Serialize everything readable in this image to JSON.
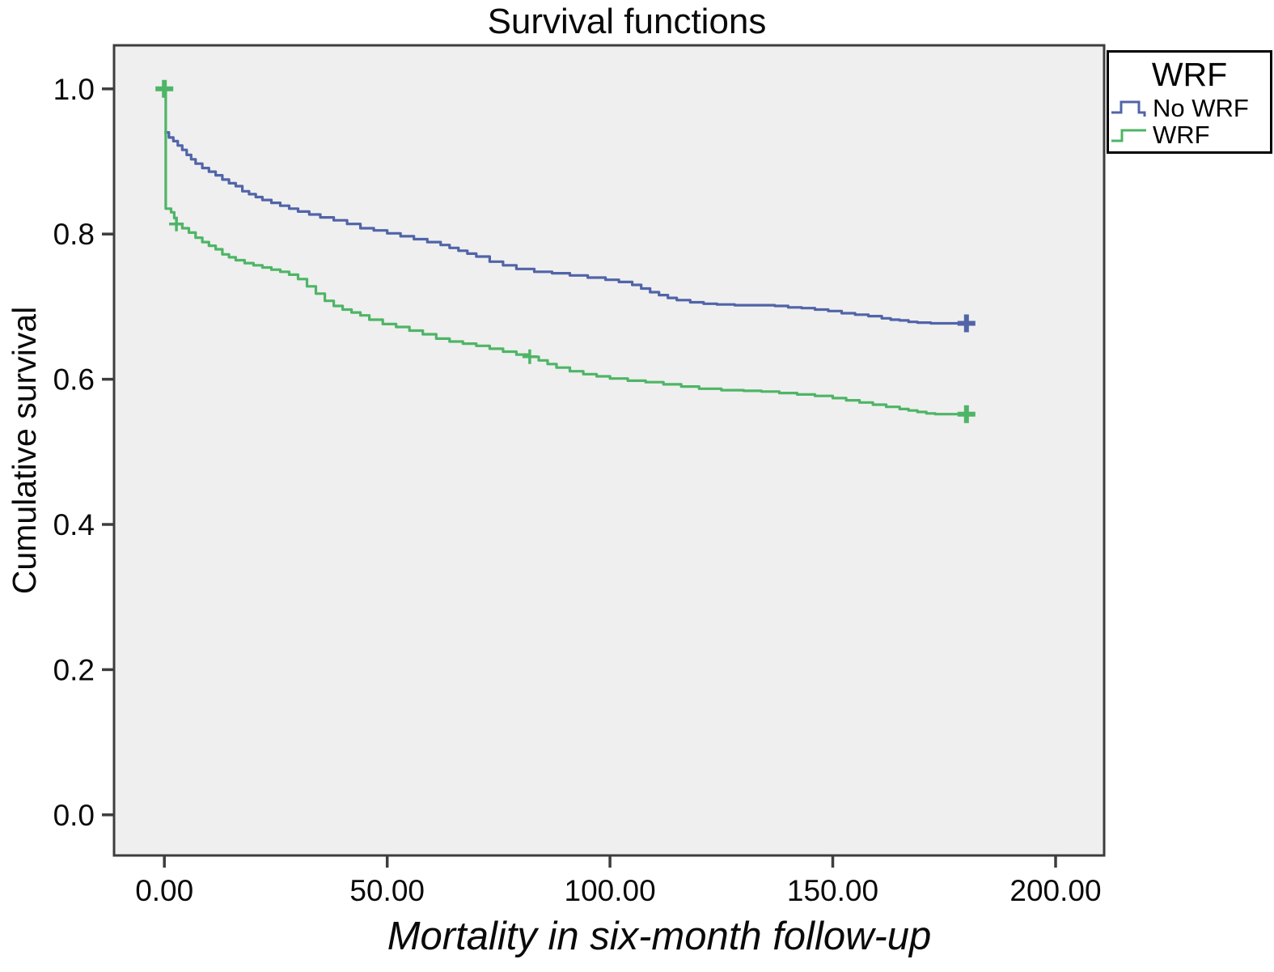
{
  "title": "Survival functions",
  "axis": {
    "ylabel": "Cumulative survival",
    "xlabel": "Mortality in six-month follow-up"
  },
  "legend": {
    "title": "WRF",
    "entries": [
      {
        "label": "No WRF",
        "color": "#5164a8"
      },
      {
        "label": "WRF",
        "color": "#4eb566"
      }
    ]
  },
  "chart_data": {
    "type": "line",
    "subtype": "kaplan-meier-step-survival",
    "title": "Survival functions",
    "xlabel": "Mortality in six-month follow-up",
    "ylabel": "Cumulative survival",
    "xlim": [
      -11.3,
      210.9
    ],
    "ylim": [
      -0.056,
      1.06
    ],
    "grid": false,
    "legend_position": "top-right-outside",
    "plot_bg": "#efefef",
    "axis_color": "#3d3d3d",
    "xticks": [
      {
        "value": 0,
        "label": "0.00"
      },
      {
        "value": 50,
        "label": "50.00"
      },
      {
        "value": 100,
        "label": "100.00"
      },
      {
        "value": 150,
        "label": "150.00"
      },
      {
        "value": 200,
        "label": "200.00"
      }
    ],
    "yticks": [
      {
        "value": 1.0,
        "label": "1.0"
      },
      {
        "value": 0.8,
        "label": "0.8"
      },
      {
        "value": 0.6,
        "label": "0.6"
      },
      {
        "value": 0.4,
        "label": "0.4"
      },
      {
        "value": 0.2,
        "label": "0.2"
      },
      {
        "value": 0.0,
        "label": "0.0"
      }
    ],
    "series": [
      {
        "name": "No WRF",
        "color": "#5164a8",
        "points": [
          [
            0,
            0.94
          ],
          [
            1,
            0.933
          ],
          [
            2,
            0.928
          ],
          [
            3,
            0.922
          ],
          [
            4,
            0.916
          ],
          [
            5,
            0.909
          ],
          [
            6,
            0.903
          ],
          [
            7,
            0.897
          ],
          [
            8.5,
            0.891
          ],
          [
            10,
            0.886
          ],
          [
            11.5,
            0.881
          ],
          [
            13,
            0.875
          ],
          [
            14.5,
            0.87
          ],
          [
            16,
            0.866
          ],
          [
            17.5,
            0.859
          ],
          [
            19,
            0.855
          ],
          [
            20.5,
            0.851
          ],
          [
            22,
            0.847
          ],
          [
            24,
            0.843
          ],
          [
            26,
            0.839
          ],
          [
            28,
            0.835
          ],
          [
            30,
            0.831
          ],
          [
            32.5,
            0.827
          ],
          [
            35,
            0.823
          ],
          [
            38,
            0.819
          ],
          [
            41,
            0.814
          ],
          [
            44,
            0.808
          ],
          [
            47,
            0.805
          ],
          [
            50,
            0.801
          ],
          [
            53,
            0.797
          ],
          [
            56,
            0.793
          ],
          [
            59,
            0.789
          ],
          [
            62,
            0.785
          ],
          [
            64,
            0.781
          ],
          [
            66,
            0.777
          ],
          [
            68,
            0.773
          ],
          [
            70,
            0.769
          ],
          [
            73,
            0.762
          ],
          [
            76,
            0.757
          ],
          [
            79,
            0.752
          ],
          [
            83,
            0.748
          ],
          [
            87,
            0.746
          ],
          [
            91,
            0.743
          ],
          [
            95,
            0.74
          ],
          [
            99,
            0.737
          ],
          [
            102,
            0.734
          ],
          [
            105,
            0.73
          ],
          [
            107,
            0.725
          ],
          [
            109,
            0.72
          ],
          [
            111,
            0.716
          ],
          [
            113,
            0.712
          ],
          [
            115,
            0.709
          ],
          [
            118,
            0.706
          ],
          [
            121,
            0.704
          ],
          [
            124,
            0.703
          ],
          [
            128,
            0.702
          ],
          [
            133,
            0.702
          ],
          [
            137,
            0.701
          ],
          [
            140,
            0.699
          ],
          [
            143,
            0.698
          ],
          [
            146,
            0.696
          ],
          [
            149,
            0.694
          ],
          [
            152,
            0.691
          ],
          [
            155,
            0.689
          ],
          [
            158,
            0.687
          ],
          [
            161,
            0.684
          ],
          [
            163,
            0.682
          ],
          [
            165,
            0.681
          ],
          [
            167,
            0.679
          ],
          [
            169,
            0.678
          ],
          [
            172,
            0.677
          ],
          [
            180,
            0.677
          ]
        ],
        "censors": [
          {
            "x": 180,
            "y": 0.677,
            "big": true
          }
        ]
      },
      {
        "name": "WRF",
        "color": "#4eb566",
        "points": [
          [
            0,
            1.0
          ],
          [
            0.3,
            0.835
          ],
          [
            1.5,
            0.83
          ],
          [
            2.2,
            0.822
          ],
          [
            2.7,
            0.814
          ],
          [
            4,
            0.808
          ],
          [
            5.5,
            0.802
          ],
          [
            7,
            0.795
          ],
          [
            8.5,
            0.789
          ],
          [
            10,
            0.784
          ],
          [
            11.5,
            0.779
          ],
          [
            13,
            0.772
          ],
          [
            14.5,
            0.768
          ],
          [
            16,
            0.764
          ],
          [
            18,
            0.76
          ],
          [
            20,
            0.757
          ],
          [
            22,
            0.754
          ],
          [
            24,
            0.751
          ],
          [
            26,
            0.748
          ],
          [
            28,
            0.744
          ],
          [
            30,
            0.738
          ],
          [
            32,
            0.728
          ],
          [
            34,
            0.718
          ],
          [
            36,
            0.708
          ],
          [
            38,
            0.701
          ],
          [
            40,
            0.696
          ],
          [
            42,
            0.692
          ],
          [
            44,
            0.688
          ],
          [
            46,
            0.682
          ],
          [
            49,
            0.676
          ],
          [
            52,
            0.672
          ],
          [
            55,
            0.667
          ],
          [
            58,
            0.662
          ],
          [
            61,
            0.656
          ],
          [
            64,
            0.652
          ],
          [
            67,
            0.649
          ],
          [
            70,
            0.646
          ],
          [
            73,
            0.642
          ],
          [
            76,
            0.638
          ],
          [
            79,
            0.634
          ],
          [
            82,
            0.631
          ],
          [
            84,
            0.626
          ],
          [
            86,
            0.621
          ],
          [
            88,
            0.616
          ],
          [
            91,
            0.611
          ],
          [
            94,
            0.607
          ],
          [
            97,
            0.604
          ],
          [
            100,
            0.601
          ],
          [
            104,
            0.598
          ],
          [
            108,
            0.596
          ],
          [
            112,
            0.593
          ],
          [
            116,
            0.59
          ],
          [
            120,
            0.587
          ],
          [
            125,
            0.585
          ],
          [
            130,
            0.584
          ],
          [
            134,
            0.583
          ],
          [
            138,
            0.581
          ],
          [
            142,
            0.579
          ],
          [
            146,
            0.577
          ],
          [
            150,
            0.574
          ],
          [
            153,
            0.571
          ],
          [
            156,
            0.568
          ],
          [
            159,
            0.565
          ],
          [
            162,
            0.562
          ],
          [
            165,
            0.559
          ],
          [
            167,
            0.557
          ],
          [
            169,
            0.555
          ],
          [
            171,
            0.553
          ],
          [
            173,
            0.552
          ],
          [
            180,
            0.552
          ]
        ],
        "censors": [
          {
            "x": 0,
            "y": 1.0,
            "big": true
          },
          {
            "x": 2.7,
            "y": 0.814,
            "big": false
          },
          {
            "x": 82,
            "y": 0.631,
            "big": false
          },
          {
            "x": 180,
            "y": 0.552,
            "big": true
          }
        ]
      }
    ]
  }
}
